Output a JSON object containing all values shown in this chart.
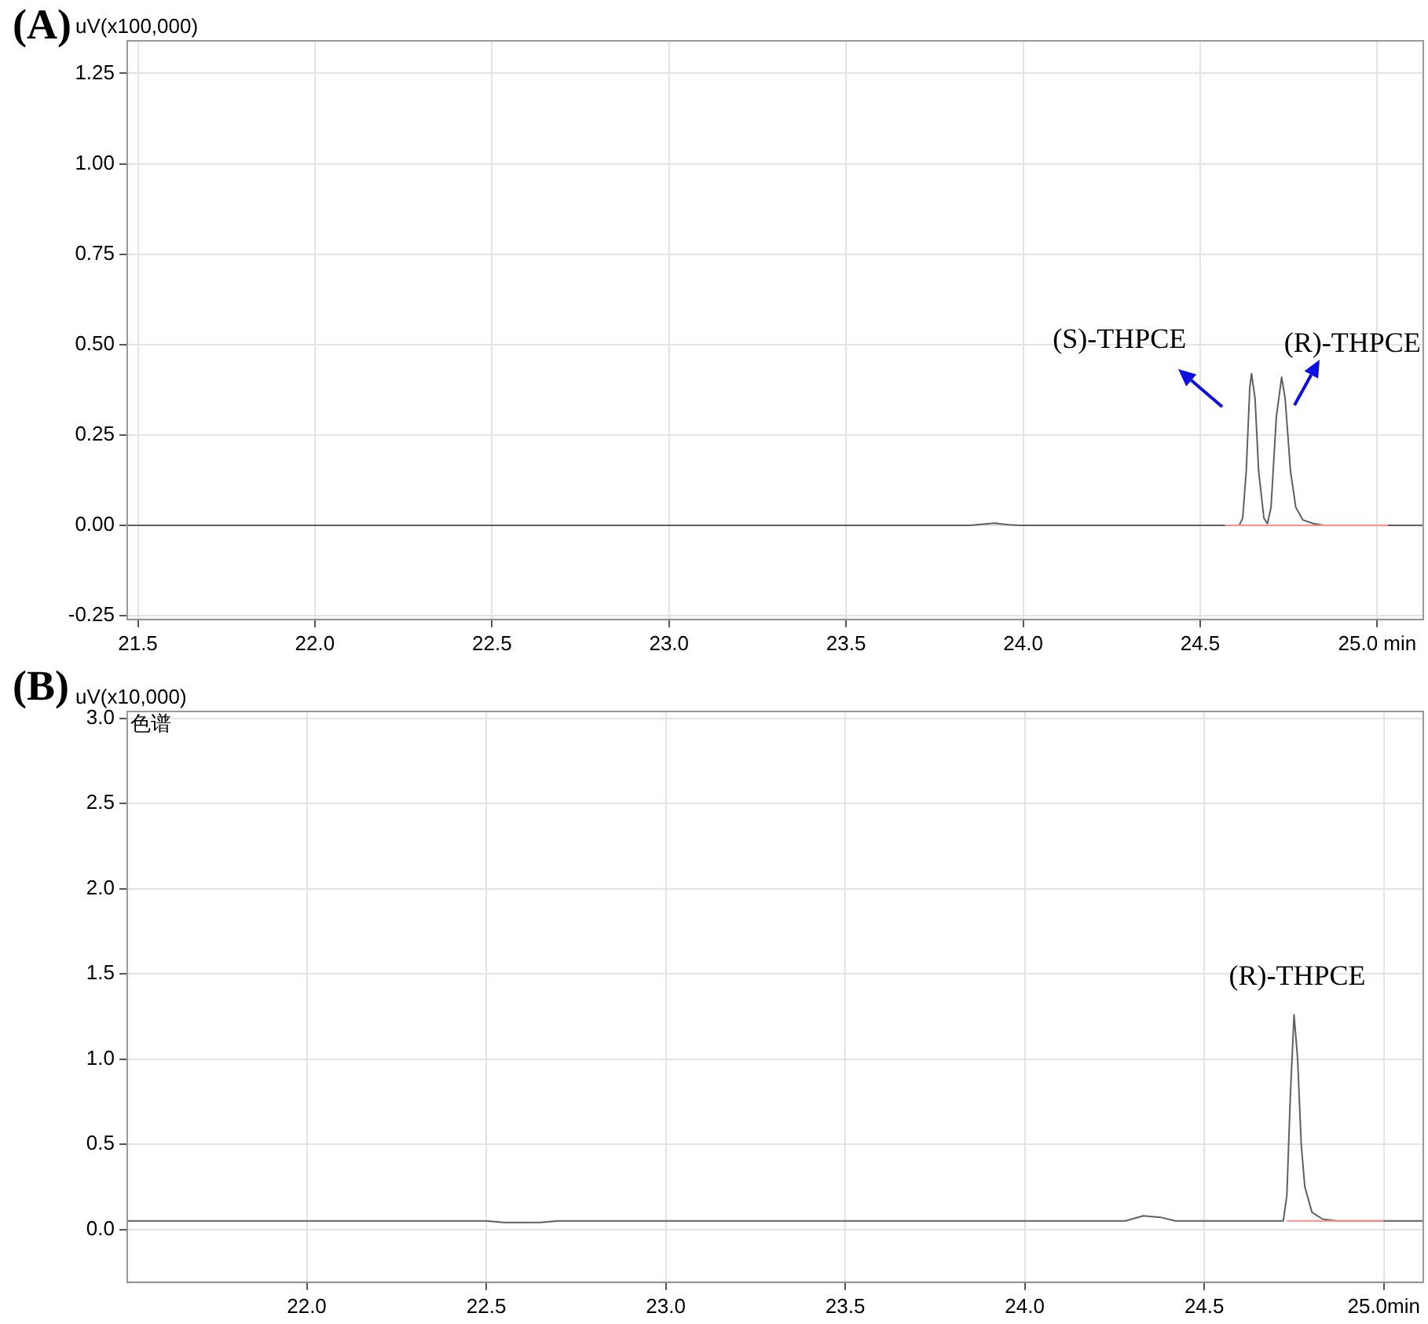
{
  "chart_data": [
    {
      "type": "line",
      "ylabel": "uV(x100,000)",
      "annotations": [
        "(A)",
        {
          "text": "(S)-THPCE",
          "x": 24.645,
          "y": 0.42
        },
        {
          "text": "(R)-THPCE",
          "x": 24.73,
          "y": 0.41
        }
      ],
      "xlim": [
        21.47,
        25.13
      ],
      "ylim": [
        -0.26,
        1.34
      ],
      "xticks": [
        {
          "value": 21.5,
          "label": "21.5"
        },
        {
          "value": 22,
          "label": "22.0"
        },
        {
          "value": 22.5,
          "label": "22.5"
        },
        {
          "value": 23,
          "label": "23.0"
        },
        {
          "value": 23.5,
          "label": "23.5"
        },
        {
          "value": 24,
          "label": "24.0"
        },
        {
          "value": 24.5,
          "label": "24.5"
        },
        {
          "value": 25,
          "label": "25.0 min"
        }
      ],
      "yticks": [
        {
          "value": -0.25,
          "label": "-0.25"
        },
        {
          "value": 0,
          "label": "0.00"
        },
        {
          "value": 0.25,
          "label": "0.25"
        },
        {
          "value": 0.5,
          "label": "0.50"
        },
        {
          "value": 0.75,
          "label": "0.75"
        },
        {
          "value": 1,
          "label": "1.00"
        },
        {
          "value": 1.25,
          "label": "1.25"
        }
      ],
      "grid": true,
      "legend": false,
      "marker": "none",
      "line_style": "solid",
      "series": [
        {
          "color": "#ff9090",
          "x": [
            24.57,
            25.03
          ],
          "values": [
            0,
            0
          ]
        },
        {
          "color": "#606060",
          "x": [
            21.47,
            23.85,
            23.88,
            23.92,
            23.96,
            23.99,
            24.61,
            24.62,
            24.63,
            24.64,
            24.645,
            24.655,
            24.665,
            24.68,
            24.69,
            24.7,
            24.715,
            24.73,
            24.74,
            24.755,
            24.77,
            24.79,
            24.82,
            24.85,
            25.13
          ],
          "values": [
            0,
            0,
            0.003,
            0.006,
            0.002,
            0,
            0,
            0.02,
            0.15,
            0.38,
            0.42,
            0.35,
            0.15,
            0.02,
            0.005,
            0.05,
            0.3,
            0.41,
            0.35,
            0.15,
            0.05,
            0.015,
            0.005,
            0,
            0
          ]
        }
      ]
    },
    {
      "type": "line",
      "ylabel": "uV(x10,000)",
      "annotations": [
        "(B)",
        "色谱",
        {
          "text": "(R)-THPCE",
          "x": 24.75,
          "y": 1.26
        }
      ],
      "xlim": [
        21.5,
        25.11
      ],
      "ylim": [
        -0.31,
        3.04
      ],
      "xticks": [
        {
          "value": 22,
          "label": "22.0"
        },
        {
          "value": 22.5,
          "label": "22.5"
        },
        {
          "value": 23,
          "label": "23.0"
        },
        {
          "value": 23.5,
          "label": "23.5"
        },
        {
          "value": 24,
          "label": "24.0"
        },
        {
          "value": 24.5,
          "label": "24.5"
        },
        {
          "value": 25,
          "label": "25.0min"
        }
      ],
      "yticks": [
        {
          "value": 0,
          "label": "0.0"
        },
        {
          "value": 0.5,
          "label": "0.5"
        },
        {
          "value": 1,
          "label": "1.0"
        },
        {
          "value": 1.5,
          "label": "1.5"
        },
        {
          "value": 2,
          "label": "2.0"
        },
        {
          "value": 2.5,
          "label": "2.5"
        },
        {
          "value": 3,
          "label": "3.0"
        }
      ],
      "grid": true,
      "legend": false,
      "marker": "none",
      "line_style": "solid",
      "series": [
        {
          "color": "#ff9090",
          "x": [
            24.73,
            25.0
          ],
          "values": [
            0.05,
            0.05
          ]
        },
        {
          "color": "#606060",
          "x": [
            21.5,
            22.5,
            22.55,
            22.65,
            22.7,
            24.28,
            24.33,
            24.38,
            24.42,
            24.72,
            24.73,
            24.74,
            24.75,
            24.76,
            24.77,
            24.78,
            24.8,
            24.83,
            24.87,
            25.11
          ],
          "values": [
            0.05,
            0.05,
            0.04,
            0.04,
            0.05,
            0.05,
            0.08,
            0.07,
            0.05,
            0.05,
            0.2,
            0.8,
            1.26,
            1.0,
            0.5,
            0.25,
            0.1,
            0.06,
            0.05,
            0.05
          ]
        }
      ]
    }
  ]
}
